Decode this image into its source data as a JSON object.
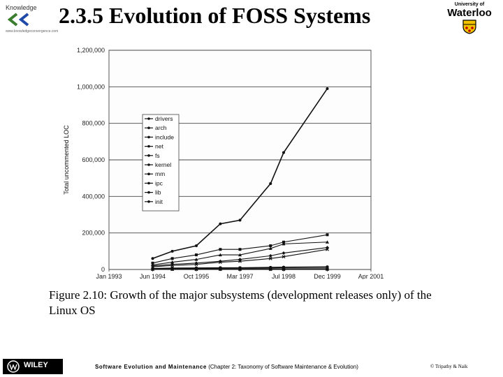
{
  "header": {
    "title": "2.3.5 Evolution of FOSS Systems",
    "left_logo": {
      "top_text": "Knowledge",
      "bottom_text": "www.knowledgeconvergence.com",
      "icon": "knowledge-convergence-logo-icon"
    },
    "right_logo": {
      "small_text": "University of",
      "big_text": "Waterloo",
      "icon": "waterloo-crest-icon",
      "color": "#f2c200"
    }
  },
  "chart_data": {
    "type": "line",
    "ylabel": "Total uncommented LOC",
    "xlabel": "",
    "ylim": [
      0,
      1200000
    ],
    "yticks": [
      "0",
      "200,000",
      "400,000",
      "600,000",
      "800,000",
      "1,000,000",
      "1,200,000"
    ],
    "yticks_values": [
      0,
      200000,
      400000,
      600000,
      800000,
      1000000,
      1200000
    ],
    "xticks": [
      "Jan 1993",
      "Jun 1994",
      "Oct 1995",
      "Mar 1997",
      "Jul 1998",
      "Dec 1999",
      "Apr 2001"
    ],
    "grid": true,
    "legend_placement": "upper-left",
    "x": [
      "Jun 1994",
      "Jan 1995",
      "Oct 1995",
      "Jun 1996",
      "Mar 1997",
      "Jan 1998",
      "Jul 1998",
      "Dec 1999"
    ],
    "series": [
      {
        "name": "drivers",
        "values": [
          60000,
          100000,
          130000,
          250000,
          270000,
          470000,
          640000,
          990000
        ]
      },
      {
        "name": "arch",
        "values": [
          35000,
          60000,
          80000,
          110000,
          110000,
          130000,
          150000,
          190000
        ]
      },
      {
        "name": "include",
        "values": [
          25000,
          40000,
          55000,
          80000,
          80000,
          115000,
          140000,
          150000
        ]
      },
      {
        "name": "net",
        "values": [
          20000,
          28000,
          35000,
          45000,
          55000,
          75000,
          90000,
          120000
        ]
      },
      {
        "name": "fs",
        "values": [
          15000,
          22000,
          28000,
          40000,
          45000,
          60000,
          70000,
          110000
        ]
      },
      {
        "name": "kernel",
        "values": [
          6000,
          8000,
          9000,
          10000,
          10000,
          12000,
          13000,
          15000
        ]
      },
      {
        "name": "mm",
        "values": [
          4000,
          5000,
          6000,
          7000,
          8000,
          9000,
          10000,
          11000
        ]
      },
      {
        "name": "ipc",
        "values": [
          2000,
          2000,
          3000,
          3000,
          3000,
          4000,
          4000,
          4000
        ]
      },
      {
        "name": "lib",
        "values": [
          1000,
          1000,
          1000,
          1000,
          1000,
          1000,
          1000,
          1000
        ]
      },
      {
        "name": "init",
        "values": [
          500,
          500,
          500,
          500,
          500,
          500,
          500,
          500
        ]
      }
    ]
  },
  "caption": "Figure 2.10: Growth of the major subsystems (development releases only) of the Linux OS",
  "footer": {
    "publisher": "WILEY",
    "book_title": "Software Evolution and Maintenance",
    "chapter": "(Chapter 2: Taxonomy of Software Maintenance & Evolution)",
    "copyright": "© Tripathy & Naik"
  }
}
